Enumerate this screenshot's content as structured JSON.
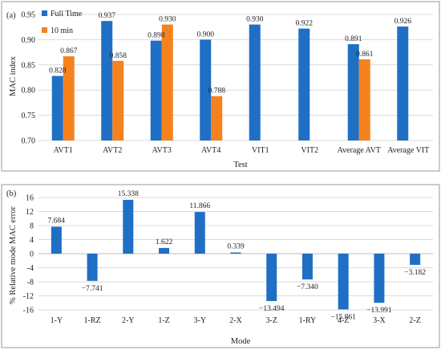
{
  "chart_data": [
    {
      "type": "bar",
      "panel_label": "(a)",
      "xlabel": "Test",
      "ylabel": "MAC index",
      "ylim": [
        0.7,
        0.95
      ],
      "yticks": [
        "0.70",
        "0.75",
        "0.80",
        "0.85",
        "0.90",
        "0.95"
      ],
      "grid": true,
      "legend_position": "top-left",
      "categories": [
        "AVT1",
        "AVT2",
        "AVT3",
        "AVT4",
        "VIT1",
        "VIT2",
        "Average AVT",
        "Average VIT"
      ],
      "series": [
        {
          "name": "Full Time",
          "color": "#1f6fc5",
          "values": [
            0.828,
            0.937,
            0.898,
            0.9,
            0.93,
            0.922,
            0.891,
            0.926
          ],
          "labels": [
            "0.828",
            "0.937",
            "0.898",
            "0.900",
            "0.930",
            "0.922",
            "0.891",
            "0.926"
          ]
        },
        {
          "name": "10 min",
          "color": "#f5821f",
          "values": [
            0.867,
            0.858,
            0.93,
            0.788,
            null,
            null,
            0.861,
            null
          ],
          "labels": [
            "0.867",
            "0.858",
            "0.930",
            "0.788",
            "",
            "",
            "0.861",
            ""
          ]
        }
      ]
    },
    {
      "type": "bar",
      "panel_label": "(b)",
      "xlabel": "Mode",
      "ylabel": "% Relative mode MAC error",
      "ylim": [
        -16,
        16
      ],
      "yticks": [
        "16",
        "12",
        "8",
        "4",
        "0",
        "-4",
        "-8",
        "-12",
        "-16"
      ],
      "grid": true,
      "categories": [
        "1-Y",
        "1-RZ",
        "2-Y",
        "1-Z",
        "3-Y",
        "2-X",
        "3-Z",
        "1-RY",
        "4-Z",
        "3-X",
        "2-Z"
      ],
      "series": [
        {
          "color": "#1f6fc5",
          "values": [
            7.684,
            -7.741,
            15.338,
            1.622,
            11.866,
            0.339,
            -13.494,
            -7.34,
            -15.861,
            -13.991,
            -3.182
          ],
          "labels": [
            "7.684",
            "−7.741",
            "15.338",
            "1.622",
            "11.866",
            "0.339",
            "−13.494",
            "−7.340",
            "−15.861",
            "−13.991",
            "−3.182"
          ]
        }
      ]
    }
  ]
}
